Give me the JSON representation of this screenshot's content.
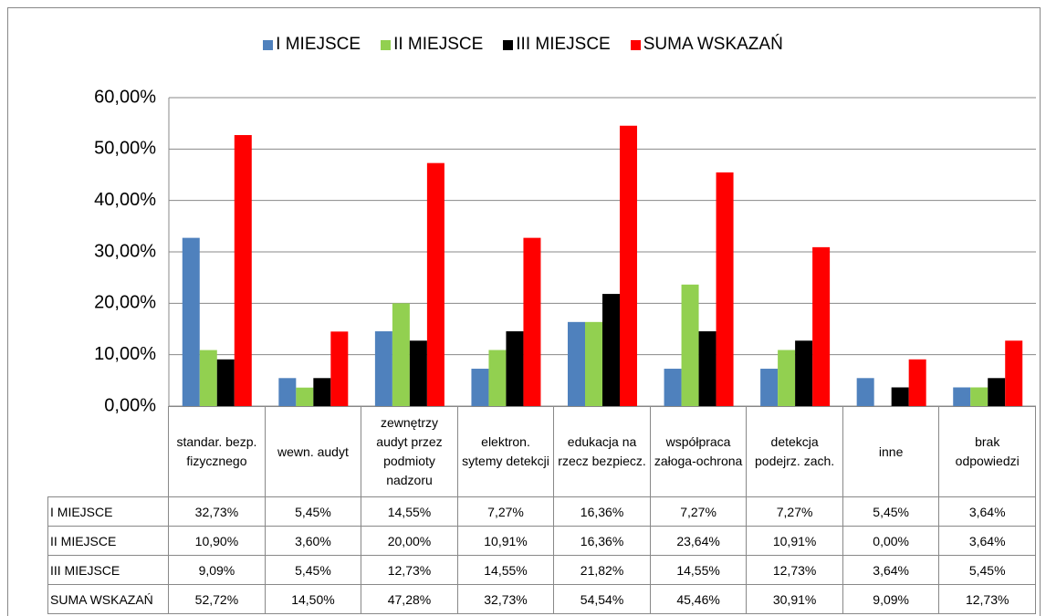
{
  "chart_data": {
    "type": "bar",
    "categories": [
      "standar. bezp. fizycznego",
      "wewn. audyt",
      "zewnętrzy audyt przez podmioty nadzoru",
      "elektron. sytemy detekcji",
      "edukacja na rzecz bezpiecz.",
      "współpraca załoga-ochrona",
      "detekcja podejrz. zach.",
      "inne",
      "brak odpowiedzi"
    ],
    "series": [
      {
        "name": "I MIEJSCE",
        "color": "#4f81bd",
        "values": [
          32.73,
          5.45,
          14.55,
          7.27,
          16.36,
          7.27,
          7.27,
          5.45,
          3.64
        ],
        "value_labels": [
          "32,73%",
          "5,45%",
          "14,55%",
          "7,27%",
          "16,36%",
          "7,27%",
          "7,27%",
          "5,45%",
          "3,64%"
        ]
      },
      {
        "name": "II MIEJSCE",
        "color": "#92d050",
        "values": [
          10.9,
          3.6,
          20.0,
          10.91,
          16.36,
          23.64,
          10.91,
          0.0,
          3.64
        ],
        "value_labels": [
          "10,90%",
          "3,60%",
          "20,00%",
          "10,91%",
          "16,36%",
          "23,64%",
          "10,91%",
          "0,00%",
          "3,64%"
        ]
      },
      {
        "name": "III MIEJSCE",
        "color": "#000000",
        "values": [
          9.09,
          5.45,
          12.73,
          14.55,
          21.82,
          14.55,
          12.73,
          3.64,
          5.45
        ],
        "value_labels": [
          "9,09%",
          "5,45%",
          "12,73%",
          "14,55%",
          "21,82%",
          "14,55%",
          "12,73%",
          "3,64%",
          "5,45%"
        ]
      },
      {
        "name": "SUMA WSKAZAŃ",
        "color": "#ff0000",
        "values": [
          52.72,
          14.5,
          47.28,
          32.73,
          54.54,
          45.46,
          30.91,
          9.09,
          12.73
        ],
        "value_labels": [
          "52,72%",
          "14,50%",
          "47,28%",
          "32,73%",
          "54,54%",
          "45,46%",
          "30,91%",
          "9,09%",
          "12,73%"
        ]
      }
    ],
    "ylim": [
      0,
      60
    ],
    "yticks": [
      {
        "value": 0,
        "label": "0,00%"
      },
      {
        "value": 10,
        "label": "10,00%"
      },
      {
        "value": 20,
        "label": "20,00%"
      },
      {
        "value": 30,
        "label": "30,00%"
      },
      {
        "value": 40,
        "label": "40,00%"
      },
      {
        "value": 50,
        "label": "50,00%"
      },
      {
        "value": 60,
        "label": "60,00%"
      }
    ],
    "grid": true,
    "legend": "top"
  }
}
